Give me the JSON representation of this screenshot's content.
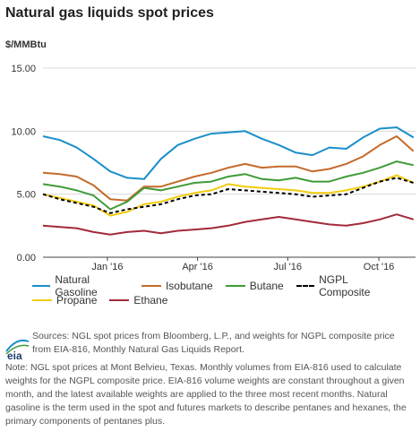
{
  "title": "Natural gas liquids spot prices",
  "unit_label": "$/MMBtu",
  "sources": "Sources: NGL spot prices from Bloomberg, L.P., and weights for NGPL composite price from EIA-816, Monthly Natural Gas Liquids Report.",
  "note": "Note: NGL spot prices at Mont Belvieu, Texas. Monthly volumes from EIA-816 used to calculate weights for the NGPL composite price. EIA-816 volume weights are constant throughout a given month, and the latest available weights are applied to the three most recent months. Natural gasoline is the term used in the spot and futures markets to describe pentanes and hexanes, the primary components of pentanes plus.",
  "logo_text": "eia",
  "chart_data": {
    "type": "line",
    "title": "Natural gas liquids spot prices",
    "ylabel": "$/MMBtu",
    "ylim": [
      0,
      15
    ],
    "yticks": [
      "0.00",
      "5.00",
      "10.00",
      "15.00"
    ],
    "xlim": [
      "2015-10-28",
      "2016-11-07"
    ],
    "xticks": [
      {
        "label": "Jan '16",
        "date": "2016-01-01"
      },
      {
        "label": "Apr '16",
        "date": "2016-04-01"
      },
      {
        "label": "Jul '16",
        "date": "2016-07-01"
      },
      {
        "label": "Oct '16",
        "date": "2016-10-01"
      }
    ],
    "grid": true,
    "legend_position": "bottom",
    "x": [
      "2015-10-28",
      "2015-11-14",
      "2015-12-01",
      "2015-12-18",
      "2016-01-04",
      "2016-01-21",
      "2016-02-07",
      "2016-02-24",
      "2016-03-12",
      "2016-03-29",
      "2016-04-15",
      "2016-05-02",
      "2016-05-19",
      "2016-06-05",
      "2016-06-22",
      "2016-07-09",
      "2016-07-26",
      "2016-08-12",
      "2016-08-29",
      "2016-09-15",
      "2016-10-02",
      "2016-10-19",
      "2016-11-05"
    ],
    "series": [
      {
        "name": "Natural Gasoline",
        "color": "#1a8fc9",
        "values": [
          9.6,
          9.3,
          8.7,
          7.8,
          6.8,
          6.3,
          6.2,
          7.8,
          8.9,
          9.4,
          9.8,
          9.9,
          10.0,
          9.4,
          8.9,
          8.3,
          8.1,
          8.7,
          8.6,
          9.5,
          10.2,
          10.3,
          9.5
        ]
      },
      {
        "name": "Isobutane",
        "color": "#c46a2b",
        "values": [
          6.7,
          6.6,
          6.4,
          5.7,
          4.6,
          4.5,
          5.6,
          5.6,
          6.0,
          6.4,
          6.7,
          7.1,
          7.4,
          7.1,
          7.2,
          7.2,
          6.8,
          7.0,
          7.4,
          8.0,
          8.9,
          9.6,
          8.4
        ]
      },
      {
        "name": "Butane",
        "color": "#3f9b38",
        "values": [
          5.8,
          5.6,
          5.3,
          4.9,
          3.8,
          4.4,
          5.5,
          5.3,
          5.6,
          5.9,
          6.0,
          6.4,
          6.6,
          6.2,
          6.1,
          6.3,
          6.0,
          6.0,
          6.4,
          6.7,
          7.1,
          7.6,
          7.3
        ]
      },
      {
        "name": "NGPL Composite",
        "color": "#000000",
        "dashed": true,
        "values": [
          5.0,
          4.6,
          4.3,
          4.0,
          3.5,
          3.8,
          4.0,
          4.2,
          4.6,
          4.9,
          5.0,
          5.4,
          5.3,
          5.2,
          5.1,
          5.0,
          4.8,
          4.9,
          5.0,
          5.5,
          6.0,
          6.3,
          5.9
        ]
      },
      {
        "name": "Propane",
        "color": "#f2cc0d",
        "values": [
          5.0,
          4.7,
          4.4,
          4.1,
          3.3,
          3.6,
          4.2,
          4.4,
          4.8,
          5.1,
          5.3,
          5.8,
          5.6,
          5.5,
          5.4,
          5.3,
          5.1,
          5.1,
          5.3,
          5.6,
          6.0,
          6.5,
          5.9
        ]
      },
      {
        "name": "Ethane",
        "color": "#a32a3a",
        "values": [
          2.5,
          2.4,
          2.3,
          2.0,
          1.8,
          2.0,
          2.1,
          1.9,
          2.1,
          2.2,
          2.3,
          2.5,
          2.8,
          3.0,
          3.2,
          3.0,
          2.8,
          2.6,
          2.5,
          2.7,
          3.0,
          3.4,
          3.0
        ]
      }
    ]
  }
}
